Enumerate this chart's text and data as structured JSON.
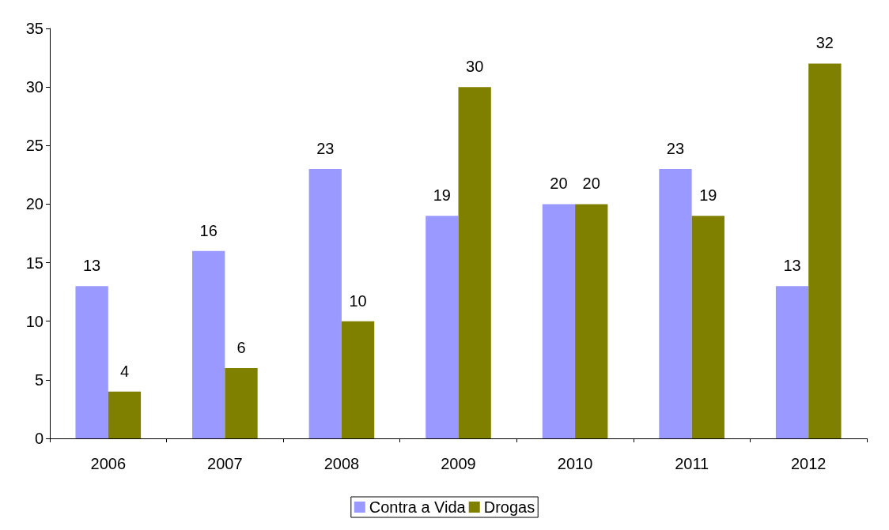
{
  "chart_data": {
    "type": "bar",
    "categories": [
      "2006",
      "2007",
      "2008",
      "2009",
      "2010",
      "2011",
      "2012"
    ],
    "series": [
      {
        "name": "Contra a Vida",
        "color": "#9999ff",
        "values": [
          13,
          16,
          23,
          19,
          20,
          23,
          13
        ]
      },
      {
        "name": "Drogas",
        "color": "#808000",
        "values": [
          4,
          6,
          10,
          30,
          20,
          19,
          32
        ]
      }
    ],
    "ylim": [
      0,
      35
    ],
    "yticks": [
      0,
      5,
      10,
      15,
      20,
      25,
      30,
      35
    ],
    "grid": false,
    "legend": "bottom",
    "data_labels": true
  }
}
